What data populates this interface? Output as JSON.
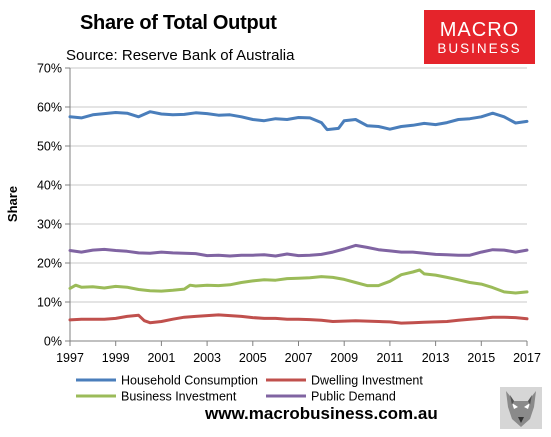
{
  "header": {
    "title": "Share of Total Output",
    "subtitle": "Source: Reserve Bank of Australia"
  },
  "logo": {
    "line1": "MACRO",
    "line2": "BUSINESS",
    "color": "#e5242b"
  },
  "footer": {
    "url": "www.macrobusiness.com.au"
  },
  "chart_data": {
    "type": "line",
    "ylabel": "Share",
    "xlabel": "",
    "xlim": [
      1997,
      2017
    ],
    "ylim": [
      0,
      70
    ],
    "x_ticks": [
      "1997",
      "1999",
      "2001",
      "2003",
      "2005",
      "2007",
      "2009",
      "2011",
      "2013",
      "2015",
      "2017"
    ],
    "y_ticks": [
      "0%",
      "10%",
      "20%",
      "30%",
      "40%",
      "50%",
      "60%",
      "70%"
    ],
    "grid": "horizontal",
    "legend": "bottom",
    "series": [
      {
        "name": "Household Consumption",
        "color": "#4a7ebb",
        "points": [
          [
            1997,
            57.5
          ],
          [
            1997.5,
            57.2
          ],
          [
            1998,
            58.0
          ],
          [
            1998.5,
            58.3
          ],
          [
            1999,
            58.6
          ],
          [
            1999.5,
            58.4
          ],
          [
            2000,
            57.5
          ],
          [
            2000.5,
            58.8
          ],
          [
            2001,
            58.2
          ],
          [
            2001.5,
            58.0
          ],
          [
            2002,
            58.1
          ],
          [
            2002.5,
            58.5
          ],
          [
            2003,
            58.3
          ],
          [
            2003.5,
            57.9
          ],
          [
            2004,
            58.0
          ],
          [
            2004.5,
            57.5
          ],
          [
            2005,
            56.8
          ],
          [
            2005.5,
            56.5
          ],
          [
            2006,
            57.0
          ],
          [
            2006.5,
            56.8
          ],
          [
            2007,
            57.3
          ],
          [
            2007.5,
            57.2
          ],
          [
            2008,
            56.0
          ],
          [
            2008.25,
            54.2
          ],
          [
            2008.75,
            54.5
          ],
          [
            2009,
            56.5
          ],
          [
            2009.5,
            56.8
          ],
          [
            2010,
            55.2
          ],
          [
            2010.5,
            55.0
          ],
          [
            2011,
            54.3
          ],
          [
            2011.5,
            55.0
          ],
          [
            2012,
            55.3
          ],
          [
            2012.5,
            55.8
          ],
          [
            2013,
            55.5
          ],
          [
            2013.5,
            56.0
          ],
          [
            2014,
            56.8
          ],
          [
            2014.5,
            57.0
          ],
          [
            2015,
            57.5
          ],
          [
            2015.5,
            58.4
          ],
          [
            2016,
            57.5
          ],
          [
            2016.5,
            55.9
          ],
          [
            2017,
            56.3
          ]
        ]
      },
      {
        "name": "Dwelling Investment",
        "color": "#c0504d",
        "points": [
          [
            1997,
            5.4
          ],
          [
            1997.5,
            5.6
          ],
          [
            1998,
            5.6
          ],
          [
            1998.5,
            5.6
          ],
          [
            1999,
            5.8
          ],
          [
            1999.5,
            6.3
          ],
          [
            2000,
            6.6
          ],
          [
            2000.25,
            5.2
          ],
          [
            2000.5,
            4.7
          ],
          [
            2001,
            5.0
          ],
          [
            2001.5,
            5.6
          ],
          [
            2002,
            6.1
          ],
          [
            2002.5,
            6.3
          ],
          [
            2003,
            6.5
          ],
          [
            2003.5,
            6.7
          ],
          [
            2004,
            6.5
          ],
          [
            2004.5,
            6.3
          ],
          [
            2005,
            6.0
          ],
          [
            2005.5,
            5.8
          ],
          [
            2006,
            5.8
          ],
          [
            2006.5,
            5.6
          ],
          [
            2007,
            5.6
          ],
          [
            2007.5,
            5.5
          ],
          [
            2008,
            5.3
          ],
          [
            2008.5,
            5.0
          ],
          [
            2009,
            5.1
          ],
          [
            2009.5,
            5.2
          ],
          [
            2010,
            5.1
          ],
          [
            2010.5,
            5.0
          ],
          [
            2011,
            4.9
          ],
          [
            2011.5,
            4.6
          ],
          [
            2012,
            4.7
          ],
          [
            2012.5,
            4.8
          ],
          [
            2013,
            4.9
          ],
          [
            2013.5,
            5.0
          ],
          [
            2014,
            5.3
          ],
          [
            2014.5,
            5.6
          ],
          [
            2015,
            5.8
          ],
          [
            2015.5,
            6.1
          ],
          [
            2016,
            6.1
          ],
          [
            2016.5,
            6.0
          ],
          [
            2017,
            5.7
          ]
        ]
      },
      {
        "name": "Business Investment",
        "color": "#9bbb59",
        "points": [
          [
            1997,
            13.5
          ],
          [
            1997.25,
            14.3
          ],
          [
            1997.5,
            13.8
          ],
          [
            1998,
            13.9
          ],
          [
            1998.5,
            13.6
          ],
          [
            1999,
            14.0
          ],
          [
            1999.5,
            13.8
          ],
          [
            2000,
            13.2
          ],
          [
            2000.5,
            12.9
          ],
          [
            2001,
            12.8
          ],
          [
            2001.5,
            13.0
          ],
          [
            2002,
            13.3
          ],
          [
            2002.25,
            14.3
          ],
          [
            2002.5,
            14.1
          ],
          [
            2003,
            14.3
          ],
          [
            2003.5,
            14.2
          ],
          [
            2004,
            14.4
          ],
          [
            2004.5,
            15.0
          ],
          [
            2005,
            15.4
          ],
          [
            2005.5,
            15.7
          ],
          [
            2006,
            15.6
          ],
          [
            2006.5,
            16.0
          ],
          [
            2007,
            16.1
          ],
          [
            2007.5,
            16.2
          ],
          [
            2008,
            16.5
          ],
          [
            2008.5,
            16.3
          ],
          [
            2009,
            15.8
          ],
          [
            2009.5,
            15.0
          ],
          [
            2010,
            14.2
          ],
          [
            2010.5,
            14.2
          ],
          [
            2011,
            15.3
          ],
          [
            2011.5,
            17.0
          ],
          [
            2012,
            17.7
          ],
          [
            2012.3,
            18.2
          ],
          [
            2012.5,
            17.2
          ],
          [
            2013,
            16.9
          ],
          [
            2013.5,
            16.3
          ],
          [
            2014,
            15.7
          ],
          [
            2014.5,
            15.0
          ],
          [
            2015,
            14.6
          ],
          [
            2015.5,
            13.7
          ],
          [
            2016,
            12.6
          ],
          [
            2016.5,
            12.3
          ],
          [
            2017,
            12.6
          ]
        ]
      },
      {
        "name": "Public Demand",
        "color": "#8064a2",
        "points": [
          [
            1997,
            23.2
          ],
          [
            1997.5,
            22.8
          ],
          [
            1998,
            23.3
          ],
          [
            1998.5,
            23.5
          ],
          [
            1999,
            23.2
          ],
          [
            1999.5,
            23.0
          ],
          [
            2000,
            22.6
          ],
          [
            2000.5,
            22.5
          ],
          [
            2001,
            22.8
          ],
          [
            2001.5,
            22.6
          ],
          [
            2002,
            22.5
          ],
          [
            2002.5,
            22.4
          ],
          [
            2003,
            21.9
          ],
          [
            2003.5,
            22.0
          ],
          [
            2004,
            21.8
          ],
          [
            2004.5,
            22.0
          ],
          [
            2005,
            22.0
          ],
          [
            2005.5,
            22.1
          ],
          [
            2006,
            21.8
          ],
          [
            2006.5,
            22.3
          ],
          [
            2007,
            21.9
          ],
          [
            2007.5,
            22.0
          ],
          [
            2008,
            22.2
          ],
          [
            2008.5,
            22.8
          ],
          [
            2009,
            23.6
          ],
          [
            2009.5,
            24.5
          ],
          [
            2010,
            24.0
          ],
          [
            2010.5,
            23.4
          ],
          [
            2011,
            23.1
          ],
          [
            2011.5,
            22.8
          ],
          [
            2012,
            22.8
          ],
          [
            2012.5,
            22.5
          ],
          [
            2013,
            22.2
          ],
          [
            2013.5,
            22.1
          ],
          [
            2014,
            22.0
          ],
          [
            2014.5,
            22.0
          ],
          [
            2015,
            22.8
          ],
          [
            2015.5,
            23.4
          ],
          [
            2016,
            23.3
          ],
          [
            2016.5,
            22.8
          ],
          [
            2017,
            23.3
          ]
        ]
      }
    ]
  }
}
